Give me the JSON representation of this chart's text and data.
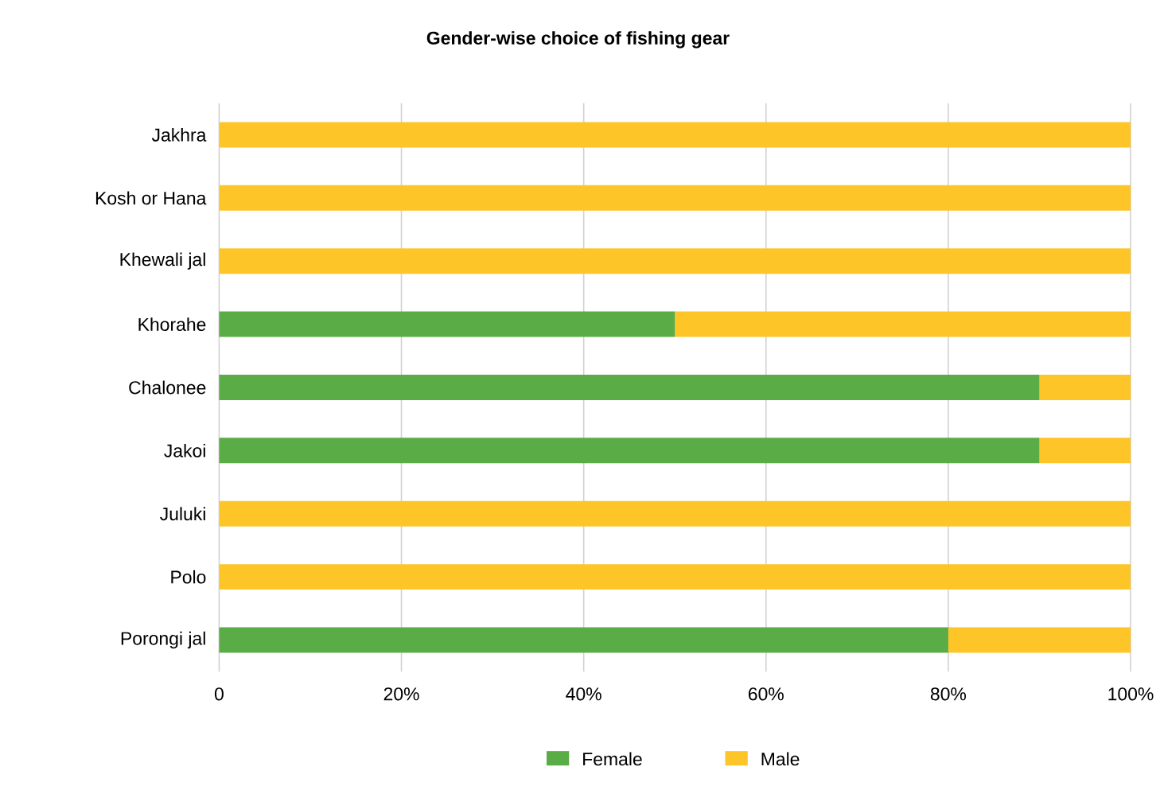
{
  "chart_data": {
    "type": "bar",
    "orientation": "horizontal",
    "stacked": true,
    "title": "Gender-wise choice of fishing gear",
    "categories": [
      "Jakhra",
      "Kosh or Hana",
      "Khewali jal",
      "Khorahe",
      "Chalonee",
      "Jakoi",
      "Juluki",
      "Polo",
      "Porongi jal"
    ],
    "series": [
      {
        "name": "Female",
        "color": "#5aac46",
        "values": [
          0,
          0,
          0,
          50,
          90,
          90,
          0,
          0,
          80
        ]
      },
      {
        "name": "Male",
        "color": "#fdc528",
        "values": [
          100,
          100,
          100,
          50,
          10,
          10,
          100,
          100,
          20
        ]
      }
    ],
    "xlim": [
      0,
      100
    ],
    "xticks": [
      0,
      {
        "value": 20,
        "label": "20%"
      },
      {
        "value": 40,
        "label": "40%"
      },
      {
        "value": 60,
        "label": "60%"
      },
      {
        "value": 80,
        "label": "80%"
      },
      {
        "value": 100,
        "label": "100%"
      }
    ],
    "grid": "x",
    "legend": "bottom"
  }
}
